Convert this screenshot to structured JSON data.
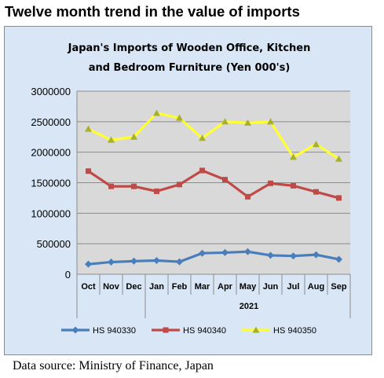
{
  "page": {
    "title": "Twelve month trend in the value of imports",
    "source": "Data source: Ministry of Finance, Japan"
  },
  "chart_data": {
    "type": "line",
    "title_lines": [
      "Japan's Imports of  Wooden  Office, Kitchen",
      "and Bedroom Furniture  (Yen 000's)"
    ],
    "categories": [
      "Oct",
      "Nov",
      "Dec",
      "Jan",
      "Feb",
      "Mar",
      "Apr",
      "May",
      "Jun",
      "Jul",
      "Aug",
      "Sep"
    ],
    "group_label": "2021",
    "group_start_index": 3,
    "ylim": [
      0,
      3000000
    ],
    "yticks": [
      0,
      500000,
      1000000,
      1500000,
      2000000,
      2500000,
      3000000
    ],
    "ytick_labels": [
      "0",
      "500000",
      "1000000",
      "1500000",
      "2000000",
      "2500000",
      "3000000"
    ],
    "grid": true,
    "legend_position": "bottom",
    "series": [
      {
        "name": "HS 940330",
        "color": "#4a7ebb",
        "marker": "diamond",
        "values": [
          165000,
          200000,
          215000,
          225000,
          205000,
          345000,
          355000,
          370000,
          310000,
          300000,
          320000,
          245000
        ]
      },
      {
        "name": "HS 940340",
        "color": "#be4b48",
        "marker": "square",
        "values": [
          1690000,
          1440000,
          1440000,
          1360000,
          1470000,
          1700000,
          1550000,
          1270000,
          1490000,
          1450000,
          1350000,
          1250000
        ]
      },
      {
        "name": "HS 940350",
        "color": "#ffff33",
        "marker": "triangle",
        "marker_color": "#a6b02a",
        "values": [
          2380000,
          2200000,
          2250000,
          2640000,
          2560000,
          2230000,
          2500000,
          2480000,
          2500000,
          1920000,
          2130000,
          1890000
        ]
      }
    ]
  }
}
